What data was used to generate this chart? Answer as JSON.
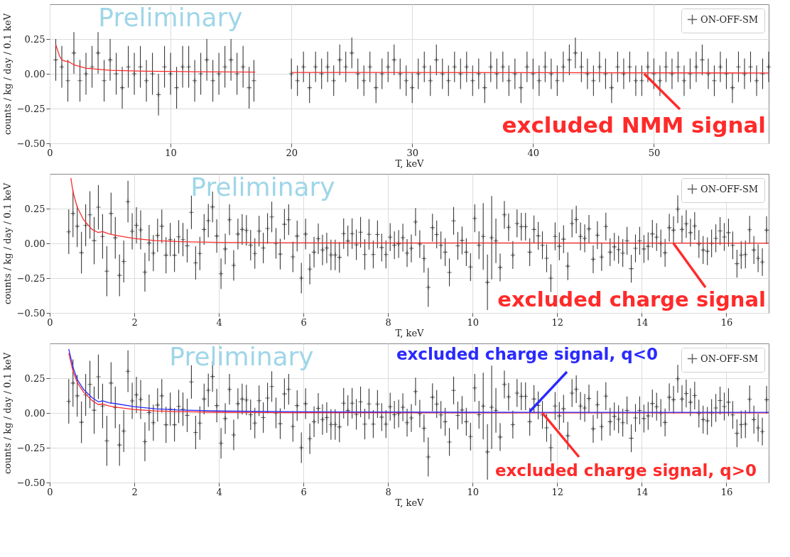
{
  "chart_data": [
    {
      "type": "scatter",
      "xlabel": "T, keV",
      "ylabel": "counts / kg / day / 0.1 keV",
      "xlim": [
        0,
        59.5
      ],
      "ylim": [
        -0.5,
        0.5
      ],
      "xticks": [
        0,
        10,
        20,
        30,
        40,
        50
      ],
      "yticks": [
        {
          "value": -0.5,
          "label": "−0.50"
        },
        {
          "value": -0.25,
          "label": "−0.25"
        },
        {
          "value": 0,
          "label": "0.00"
        },
        {
          "value": 0.25,
          "label": "0.25"
        }
      ],
      "grid": true,
      "legend": "top right",
      "annotations": [
        "Preliminary",
        {
          "text": "excluded NMM signal",
          "x": 49.2,
          "y": 0.0
        }
      ],
      "series": [
        {
          "name": "ON-OFF-SM",
          "marker": "cross",
          "color": "#222222",
          "x": [
            0.5,
            1,
            1.5,
            2,
            2.5,
            3,
            3.5,
            4,
            4.5,
            5,
            5.5,
            6,
            6.5,
            7,
            7.5,
            8,
            8.5,
            9,
            9.5,
            10,
            10.5,
            11,
            11.5,
            12,
            12.5,
            13,
            13.5,
            14,
            14.5,
            15,
            15.5,
            16,
            16.5,
            16.9,
            20,
            20.5,
            21,
            21.5,
            22,
            22.5,
            23,
            23.5,
            24,
            24.5,
            25,
            25.5,
            26,
            26.5,
            27,
            27.5,
            28,
            28.5,
            29,
            29.5,
            30,
            30.5,
            31,
            31.5,
            32,
            32.5,
            33,
            33.5,
            34,
            34.5,
            35,
            35.5,
            36,
            36.5,
            37,
            37.5,
            38,
            38.5,
            39,
            39.5,
            40,
            40.5,
            41,
            41.5,
            42,
            42.5,
            43,
            43.5,
            44,
            44.5,
            45,
            45.5,
            46,
            46.5,
            47,
            47.5,
            48,
            48.5,
            49,
            49.5,
            50,
            50.5,
            51,
            51.5,
            52,
            52.5,
            53,
            53.5,
            54,
            54.5,
            55,
            55.5,
            56,
            56.5,
            57,
            57.5,
            58,
            58.5,
            59,
            59.5
          ],
          "values": [
            0.1,
            0.05,
            -0.05,
            0.15,
            -0.05,
            0.0,
            0.05,
            0.15,
            -0.05,
            0.1,
            0.0,
            -0.1,
            0.05,
            0.0,
            0.05,
            -0.05,
            0.0,
            -0.15,
            0.05,
            0.0,
            -0.1,
            0.05,
            0.05,
            -0.05,
            0.0,
            0.1,
            -0.05,
            0.0,
            0.05,
            0.1,
            0.0,
            0.05,
            -0.1,
            -0.05,
            0.0,
            -0.05,
            0.05,
            -0.1,
            0.05,
            0.0,
            0.05,
            -0.05,
            0.1,
            0.05,
            0.15,
            0.0,
            -0.05,
            0.05,
            -0.1,
            0.0,
            0.05,
            0.1,
            0.0,
            -0.05,
            -0.1,
            0.0,
            0.05,
            -0.05,
            0.1,
            0.0,
            -0.05,
            0.05,
            0.0,
            0.05,
            -0.05,
            0.0,
            -0.1,
            0.05,
            0.0,
            0.05,
            -0.05,
            0.0,
            -0.1,
            0.05,
            0.0,
            -0.05,
            0.05,
            0.0,
            -0.05,
            0.05,
            0.1,
            0.15,
            0.05,
            0.0,
            -0.05,
            0.05,
            0.0,
            -0.1,
            0.05,
            0.0,
            0.05,
            -0.05,
            -0.05,
            0.05,
            0.0,
            -0.05,
            0.05,
            0.0,
            0.05,
            -0.05,
            0.0,
            0.05,
            0.1,
            0.0,
            -0.05,
            0.05,
            0.0,
            -0.1,
            0.05,
            0.0,
            0.05,
            -0.05,
            0.0,
            0.05
          ],
          "errors": [
            0.15,
            0.15,
            0.15,
            0.15,
            0.15,
            0.15,
            0.15,
            0.15,
            0.15,
            0.15,
            0.15,
            0.15,
            0.15,
            0.15,
            0.15,
            0.15,
            0.15,
            0.15,
            0.15,
            0.15,
            0.15,
            0.15,
            0.15,
            0.15,
            0.15,
            0.15,
            0.15,
            0.15,
            0.15,
            0.15,
            0.15,
            0.15,
            0.15,
            0.15,
            0.11,
            0.11,
            0.11,
            0.11,
            0.11,
            0.11,
            0.11,
            0.11,
            0.11,
            0.11,
            0.11,
            0.11,
            0.11,
            0.11,
            0.11,
            0.11,
            0.11,
            0.11,
            0.11,
            0.11,
            0.11,
            0.11,
            0.11,
            0.11,
            0.11,
            0.11,
            0.11,
            0.11,
            0.11,
            0.11,
            0.11,
            0.11,
            0.11,
            0.11,
            0.11,
            0.11,
            0.11,
            0.11,
            0.11,
            0.11,
            0.11,
            0.11,
            0.11,
            0.11,
            0.11,
            0.11,
            0.11,
            0.11,
            0.11,
            0.11,
            0.11,
            0.11,
            0.11,
            0.11,
            0.11,
            0.11,
            0.11,
            0.11,
            0.11,
            0.11,
            0.11,
            0.11,
            0.11,
            0.11,
            0.11,
            0.11,
            0.11,
            0.11,
            0.11,
            0.11,
            0.11,
            0.11,
            0.11,
            0.11,
            0.11,
            0.11,
            0.11,
            0.11,
            0.11,
            0.11
          ]
        },
        {
          "type": "line",
          "color": "#ff2a2a",
          "x": [
            0.5,
            0.8,
            1.0,
            1.3,
            1.5,
            2,
            3,
            5,
            8,
            12,
            17,
            18.5,
            20,
            59.5
          ],
          "values": [
            0.21,
            0.13,
            0.1,
            0.09,
            0.09,
            0.065,
            0.04,
            0.025,
            0.018,
            0.015,
            0.012,
            null,
            0.01,
            0.006
          ]
        }
      ]
    },
    {
      "type": "scatter",
      "xlabel": "T, keV",
      "ylabel": "counts / kg / day / 0.1 keV",
      "xlim": [
        0,
        17
      ],
      "ylim": [
        -0.5,
        0.5
      ],
      "xticks": [
        0,
        2,
        4,
        6,
        8,
        10,
        12,
        14,
        16
      ],
      "yticks": [
        {
          "value": -0.5,
          "label": "−0.50"
        },
        {
          "value": -0.25,
          "label": "−0.25"
        },
        {
          "value": 0,
          "label": "0.00"
        },
        {
          "value": 0.25,
          "label": "0.25"
        }
      ],
      "grid": true,
      "legend": "top right",
      "annotations": [
        "Preliminary",
        {
          "text": "excluded charge signal",
          "x": 14.75,
          "y": 0.0
        }
      ],
      "series": [
        {
          "name": "ON-OFF-SM",
          "marker": "cross",
          "color": "#222222",
          "x": [
            0.45,
            0.55,
            0.65,
            0.75,
            0.85,
            0.95,
            1.05,
            1.15,
            1.25,
            1.35,
            1.45,
            1.55,
            1.65,
            1.75,
            1.85,
            1.95,
            2.05,
            2.15,
            2.25,
            2.35,
            2.45,
            2.55,
            2.65,
            2.75,
            2.85,
            2.95,
            3.05,
            3.15,
            3.25,
            3.35,
            3.45,
            3.55,
            3.65,
            3.75,
            3.85,
            3.95,
            4.05,
            4.15,
            4.25,
            4.35,
            4.45,
            4.55,
            4.65,
            4.75,
            4.85,
            4.95,
            5.05,
            5.15,
            5.25,
            5.35,
            5.45,
            5.55,
            5.65,
            5.75,
            5.85,
            5.95,
            6.05,
            6.15,
            6.25,
            6.35,
            6.45,
            6.55,
            6.65,
            6.75,
            6.85,
            6.95,
            7.05,
            7.15,
            7.25,
            7.35,
            7.45,
            7.55,
            7.65,
            7.75,
            7.85,
            7.95,
            8.05,
            8.15,
            8.25,
            8.35,
            8.45,
            8.55,
            8.65,
            8.75,
            8.85,
            8.95,
            9.05,
            9.15,
            9.25,
            9.35,
            9.45,
            9.55,
            9.65,
            9.75,
            9.85,
            9.95,
            10.05,
            10.15,
            10.25,
            10.35,
            10.45,
            10.55,
            10.65,
            10.75,
            10.85,
            10.95,
            11.05,
            11.15,
            11.25,
            11.35,
            11.45,
            11.55,
            11.65,
            11.75,
            11.85,
            11.95,
            12.05,
            12.15,
            12.25,
            12.35,
            12.45,
            12.55,
            12.65,
            12.75,
            12.85,
            12.95,
            13.05,
            13.15,
            13.25,
            13.35,
            13.45,
            13.55,
            13.65,
            13.75,
            13.85,
            13.95,
            14.05,
            14.15,
            14.25,
            14.35,
            14.45,
            14.55,
            14.65,
            14.75,
            14.85,
            14.95,
            15.05,
            15.15,
            15.25,
            15.35,
            15.45,
            15.55,
            15.65,
            15.75,
            15.85,
            15.95,
            16.05,
            16.15,
            16.25,
            16.35,
            16.45,
            16.55,
            16.65,
            16.75,
            16.85,
            16.95
          ],
          "values": [
            0.083,
            0.215,
            0.123,
            -0.067,
            0.13,
            0.205,
            0.02,
            0.26,
            0.05,
            -0.2,
            0.215,
            0.04,
            -0.23,
            -0.13,
            0.3,
            0.087,
            0.13,
            0.097,
            -0.207,
            0.003,
            -0.07,
            0.057,
            0.123,
            -0.085,
            0.027,
            -0.085,
            0.047,
            0.027,
            -0.017,
            0.223,
            -0.14,
            -0.073,
            0.1,
            0.163,
            0.262,
            0.053,
            -0.218,
            -0.04,
            0.17,
            -0.158,
            0.067,
            0.1,
            0.093,
            -0.013,
            -0.073,
            0.088,
            -0.033,
            0.107,
            0.19,
            0.0,
            -0.077,
            0.137,
            0.17,
            -0.097,
            0.053,
            -0.25,
            0.067,
            -0.185,
            -0.063,
            0.033,
            -0.047,
            -0.033,
            -0.083,
            -0.083,
            -0.1,
            0.07,
            0.017,
            0.07,
            -0.01,
            0.08,
            -0.08,
            0.065,
            -0.08,
            0.064,
            -0.03,
            -0.08,
            0.045,
            -0.013,
            -0.004,
            0.041,
            -0.07,
            -0.036,
            0.154,
            -0.005,
            -0.11,
            -0.316,
            0.113,
            0.064,
            -0.014,
            -0.063,
            -0.209,
            0.162,
            -0.018,
            0.021,
            -0.063,
            -0.17,
            0.18,
            -0.013,
            0.05,
            -0.28,
            0.041,
            0.018,
            -0.173,
            0.205,
            0.116,
            -0.084,
            0.143,
            0.12,
            0.12,
            -0.063,
            0.1,
            0.054,
            -0.014,
            -0.107,
            -0.25,
            0.05,
            -0.021,
            0.03,
            -0.164,
            0.143,
            0.171,
            0.05,
            0.036,
            0.104,
            -0.114,
            0.059,
            -0.098,
            0.121,
            -0.063,
            -0.025,
            -0.045,
            -0.07,
            0.018,
            -0.182,
            -0.036,
            0.018,
            -0.04,
            -0.021,
            0.068,
            0.045,
            0.0,
            -0.068,
            0.113,
            0.095,
            0.246,
            0.1,
            0.14,
            0.077,
            0.125,
            -0.004,
            -0.048,
            -0.057,
            0.0,
            0.036,
            0.089,
            0.046,
            0.077,
            -0.014,
            -0.146,
            -0.084,
            -0.08,
            0.098,
            -0.048,
            -0.107,
            -0.134,
            0.095
          ],
          "errors": [
            0.16,
            0.17,
            0.15,
            0.15,
            0.15,
            0.17,
            0.17,
            0.16,
            0.16,
            0.18,
            0.15,
            0.15,
            0.15,
            0.15,
            0.15,
            0.13,
            0.13,
            0.14,
            0.14,
            0.13,
            0.13,
            0.12,
            0.12,
            0.13,
            0.12,
            0.12,
            0.12,
            0.12,
            0.12,
            0.12,
            0.12,
            0.12,
            0.11,
            0.12,
            0.11,
            0.12,
            0.11,
            0.11,
            0.11,
            0.11,
            0.11,
            0.11,
            0.11,
            0.11,
            0.11,
            0.11,
            0.11,
            0.11,
            0.11,
            0.11,
            0.11,
            0.11,
            0.11,
            0.11,
            0.11,
            0.11,
            0.11,
            0.11,
            0.11,
            0.11,
            0.11,
            0.11,
            0.11,
            0.11,
            0.11,
            0.11,
            0.11,
            0.11,
            0.11,
            0.11,
            0.11,
            0.11,
            0.1,
            0.1,
            0.1,
            0.1,
            0.1,
            0.1,
            0.1,
            0.1,
            0.1,
            0.1,
            0.1,
            0.1,
            0.1,
            0.14,
            0.1,
            0.1,
            0.1,
            0.1,
            0.1,
            0.1,
            0.1,
            0.1,
            0.1,
            0.1,
            0.1,
            0.1,
            0.24,
            0.2,
            0.3,
            0.16,
            0.1,
            0.1,
            0.1,
            0.1,
            0.1,
            0.1,
            0.1,
            0.1,
            0.1,
            0.1,
            0.1,
            0.1,
            0.1,
            0.1,
            0.1,
            0.1,
            0.1,
            0.1,
            0.1,
            0.1,
            0.1,
            0.1,
            0.1,
            0.1,
            0.1,
            0.1,
            0.1,
            0.1,
            0.1,
            0.1,
            0.1,
            0.1,
            0.1,
            0.1,
            0.1,
            0.1,
            0.1,
            0.1,
            0.1,
            0.1,
            0.1,
            0.1,
            0.1,
            0.1,
            0.1,
            0.1,
            0.1,
            0.1,
            0.1,
            0.1,
            0.1,
            0.1,
            0.1,
            0.1,
            0.1,
            0.1,
            0.1,
            0.1,
            0.1,
            0.1,
            0.1,
            0.1,
            0.1,
            0.1
          ]
        },
        {
          "type": "line",
          "color": "#ff2a2a",
          "x": [
            0.5,
            0.55,
            0.65,
            0.8,
            1.0,
            1.15,
            1.25,
            1.4,
            1.6,
            2.0,
            2.5,
            3,
            4,
            6,
            10,
            17
          ],
          "values": [
            0.47,
            0.37,
            0.26,
            0.17,
            0.1,
            0.078,
            0.085,
            0.068,
            0.055,
            0.035,
            0.02,
            0.013,
            0.007,
            0.004,
            0.003,
            0.002
          ]
        }
      ]
    },
    {
      "type": "scatter",
      "xlabel": "T, keV",
      "ylabel": "counts / kg / day / 0.1 keV",
      "xlim": [
        0,
        17
      ],
      "ylim": [
        -0.5,
        0.5
      ],
      "xticks": [
        0,
        2,
        4,
        6,
        8,
        10,
        12,
        14,
        16
      ],
      "yticks": [
        {
          "value": -0.5,
          "label": "−0.50"
        },
        {
          "value": -0.25,
          "label": "−0.25"
        },
        {
          "value": 0,
          "label": "0.00"
        },
        {
          "value": 0.25,
          "label": "0.25"
        }
      ],
      "grid": true,
      "legend": "top right",
      "annotations": [
        "Preliminary",
        {
          "text": "excluded charge signal, q<0",
          "x": 11.35,
          "y": 0.01
        },
        {
          "text": "excluded charge signal, q>0",
          "x": 11.65,
          "y": 0.0
        }
      ],
      "series": [
        {
          "name": "ON-OFF-SM",
          "marker": "cross",
          "color": "#222222",
          "x": [
            0.45,
            0.55,
            0.65,
            0.75,
            0.85,
            0.95,
            1.05,
            1.15,
            1.25,
            1.35,
            1.45,
            1.55,
            1.65,
            1.75,
            1.85,
            1.95,
            2.05,
            2.15,
            2.25,
            2.35,
            2.45,
            2.55,
            2.65,
            2.75,
            2.85,
            2.95,
            3.05,
            3.15,
            3.25,
            3.35,
            3.45,
            3.55,
            3.65,
            3.75,
            3.85,
            3.95,
            4.05,
            4.15,
            4.25,
            4.35,
            4.45,
            4.55,
            4.65,
            4.75,
            4.85,
            4.95,
            5.05,
            5.15,
            5.25,
            5.35,
            5.45,
            5.55,
            5.65,
            5.75,
            5.85,
            5.95,
            6.05,
            6.15,
            6.25,
            6.35,
            6.45,
            6.55,
            6.65,
            6.75,
            6.85,
            6.95,
            7.05,
            7.15,
            7.25,
            7.35,
            7.45,
            7.55,
            7.65,
            7.75,
            7.85,
            7.95,
            8.05,
            8.15,
            8.25,
            8.35,
            8.45,
            8.55,
            8.65,
            8.75,
            8.85,
            8.95,
            9.05,
            9.15,
            9.25,
            9.35,
            9.45,
            9.55,
            9.65,
            9.75,
            9.85,
            9.95,
            10.05,
            10.15,
            10.25,
            10.35,
            10.45,
            10.55,
            10.65,
            10.75,
            10.85,
            10.95,
            11.05,
            11.15,
            11.25,
            11.35,
            11.45,
            11.55,
            11.65,
            11.75,
            11.85,
            11.95,
            12.05,
            12.15,
            12.25,
            12.35,
            12.45,
            12.55,
            12.65,
            12.75,
            12.85,
            12.95,
            13.05,
            13.15,
            13.25,
            13.35,
            13.45,
            13.55,
            13.65,
            13.75,
            13.85,
            13.95,
            14.05,
            14.15,
            14.25,
            14.35,
            14.45,
            14.55,
            14.65,
            14.75,
            14.85,
            14.95,
            15.05,
            15.15,
            15.25,
            15.35,
            15.45,
            15.55,
            15.65,
            15.75,
            15.85,
            15.95,
            16.05,
            16.15,
            16.25,
            16.35,
            16.45,
            16.55,
            16.65,
            16.75,
            16.85,
            16.95
          ],
          "values": [
            0.083,
            0.215,
            0.123,
            -0.067,
            0.13,
            0.205,
            0.02,
            0.26,
            0.05,
            -0.2,
            0.215,
            0.04,
            -0.23,
            -0.13,
            0.3,
            0.087,
            0.13,
            0.097,
            -0.207,
            0.003,
            -0.07,
            0.057,
            0.123,
            -0.085,
            0.027,
            -0.085,
            0.047,
            0.027,
            -0.017,
            0.223,
            -0.14,
            -0.073,
            0.1,
            0.163,
            0.262,
            0.053,
            -0.218,
            -0.04,
            0.17,
            -0.158,
            0.067,
            0.1,
            0.093,
            -0.013,
            -0.073,
            0.088,
            -0.033,
            0.107,
            0.19,
            0.0,
            -0.077,
            0.137,
            0.17,
            -0.097,
            0.053,
            -0.25,
            0.067,
            -0.185,
            -0.063,
            0.033,
            -0.047,
            -0.033,
            -0.083,
            -0.083,
            -0.1,
            0.07,
            0.017,
            0.07,
            -0.01,
            0.08,
            -0.08,
            0.065,
            -0.08,
            0.064,
            -0.03,
            -0.08,
            0.045,
            -0.013,
            -0.004,
            0.041,
            -0.07,
            -0.036,
            0.154,
            -0.005,
            -0.11,
            -0.316,
            0.113,
            0.064,
            -0.014,
            -0.063,
            -0.209,
            0.162,
            -0.018,
            0.021,
            -0.063,
            -0.17,
            0.18,
            -0.013,
            0.05,
            -0.28,
            0.041,
            0.018,
            -0.173,
            0.205,
            0.116,
            -0.084,
            0.143,
            0.12,
            0.12,
            -0.063,
            0.1,
            0.054,
            -0.014,
            -0.107,
            -0.25,
            0.05,
            -0.021,
            0.03,
            -0.164,
            0.143,
            0.171,
            0.05,
            0.036,
            0.104,
            -0.114,
            0.059,
            -0.098,
            0.121,
            -0.063,
            -0.025,
            -0.045,
            -0.07,
            0.018,
            -0.182,
            -0.036,
            0.018,
            -0.04,
            -0.021,
            0.068,
            0.045,
            0.0,
            -0.068,
            0.113,
            0.095,
            0.246,
            0.1,
            0.14,
            0.077,
            0.125,
            -0.004,
            -0.048,
            -0.057,
            0.0,
            0.036,
            0.089,
            0.046,
            0.077,
            -0.014,
            -0.146,
            -0.084,
            -0.08,
            0.098,
            -0.048,
            -0.107,
            -0.134,
            0.095
          ],
          "errors": [
            0.16,
            0.17,
            0.15,
            0.15,
            0.15,
            0.17,
            0.17,
            0.16,
            0.16,
            0.18,
            0.15,
            0.15,
            0.15,
            0.15,
            0.15,
            0.13,
            0.13,
            0.14,
            0.14,
            0.13,
            0.13,
            0.12,
            0.12,
            0.13,
            0.12,
            0.12,
            0.12,
            0.12,
            0.12,
            0.12,
            0.12,
            0.12,
            0.11,
            0.12,
            0.11,
            0.12,
            0.11,
            0.11,
            0.11,
            0.11,
            0.11,
            0.11,
            0.11,
            0.11,
            0.11,
            0.11,
            0.11,
            0.11,
            0.11,
            0.11,
            0.11,
            0.11,
            0.11,
            0.11,
            0.11,
            0.11,
            0.11,
            0.11,
            0.11,
            0.11,
            0.11,
            0.11,
            0.11,
            0.11,
            0.11,
            0.11,
            0.11,
            0.11,
            0.11,
            0.11,
            0.11,
            0.11,
            0.1,
            0.1,
            0.1,
            0.1,
            0.1,
            0.1,
            0.1,
            0.1,
            0.1,
            0.1,
            0.1,
            0.1,
            0.1,
            0.14,
            0.1,
            0.1,
            0.1,
            0.1,
            0.1,
            0.1,
            0.1,
            0.1,
            0.1,
            0.1,
            0.1,
            0.1,
            0.24,
            0.2,
            0.3,
            0.16,
            0.1,
            0.1,
            0.1,
            0.1,
            0.1,
            0.1,
            0.1,
            0.1,
            0.1,
            0.1,
            0.1,
            0.1,
            0.1,
            0.1,
            0.1,
            0.1,
            0.1,
            0.1,
            0.1,
            0.1,
            0.1,
            0.1,
            0.1,
            0.1,
            0.1,
            0.1,
            0.1,
            0.1,
            0.1,
            0.1,
            0.1,
            0.1,
            0.1,
            0.1,
            0.1,
            0.1,
            0.1,
            0.1,
            0.1,
            0.1,
            0.1,
            0.1,
            0.1,
            0.1,
            0.1,
            0.1,
            0.1,
            0.1,
            0.1,
            0.1,
            0.1,
            0.1,
            0.1,
            0.1,
            0.1,
            0.1,
            0.1,
            0.1,
            0.1,
            0.1,
            0.1,
            0.1,
            0.1,
            0.1
          ]
        },
        {
          "type": "line",
          "color": "#ff2a2a",
          "x": [
            0.45,
            0.55,
            0.65,
            0.8,
            1.0,
            1.15,
            1.25,
            1.4,
            1.6,
            2.0,
            2.5,
            3,
            4,
            6,
            10,
            17
          ],
          "values": [
            0.43,
            0.3,
            0.22,
            0.15,
            0.09,
            0.06,
            0.065,
            0.05,
            0.04,
            0.025,
            0.015,
            0.01,
            0.005,
            0.002,
            0.001,
            0.001
          ]
        },
        {
          "type": "line",
          "color": "#2a2aff",
          "x": [
            0.45,
            0.55,
            0.65,
            0.8,
            1.0,
            1.15,
            1.25,
            1.4,
            1.6,
            2.0,
            2.5,
            3,
            4,
            6,
            10,
            17
          ],
          "values": [
            0.46,
            0.33,
            0.24,
            0.17,
            0.11,
            0.08,
            0.087,
            0.073,
            0.065,
            0.045,
            0.03,
            0.022,
            0.014,
            0.008,
            0.005,
            0.004
          ]
        }
      ]
    }
  ]
}
